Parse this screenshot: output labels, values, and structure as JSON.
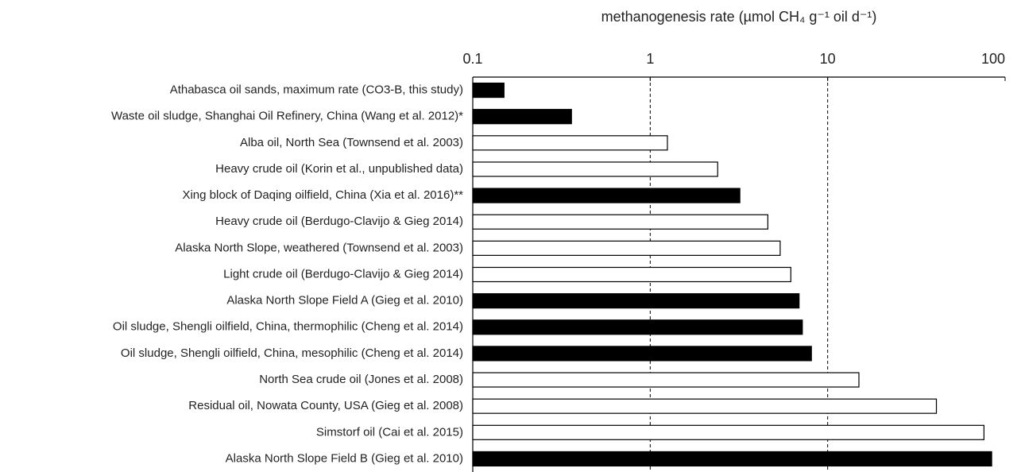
{
  "chart_data": {
    "type": "bar",
    "orientation": "horizontal",
    "x_label": "methanogenesis rate (µmol CH₄ g⁻¹ oil d⁻¹)",
    "categories": [
      "Athabasca oil sands, maximum rate (CO3-B, this study)",
      "Waste oil sludge, Shanghai Oil Refinery, China (Wang et al. 2012)*",
      "Alba oil, North Sea (Townsend et al. 2003)",
      "Heavy crude oil (Korin et al., unpublished data)",
      "Xing block of Daqing oilfield, China (Xia et al. 2016)**",
      "Heavy crude oil (Berdugo-Clavijo & Gieg 2014)",
      "Alaska North Slope, weathered (Townsend et al. 2003)",
      "Light crude oil (Berdugo-Clavijo & Gieg 2014)",
      "Alaska North Slope Field A (Gieg et al. 2010)",
      "Oil sludge, Shengli oilfield, China, thermophilic (Cheng et al. 2014)",
      "Oil sludge, Shengli oilfield, China, mesophilic (Cheng et al. 2014)",
      "North Sea crude oil (Jones et al. 2008)",
      "Residual oil, Nowata County, USA (Gieg et al. 2008)",
      "Simstorf oil (Cai et al. 2015)",
      "Alaska North Slope Field B (Gieg et al. 2010)"
    ],
    "values": [
      0.15,
      0.36,
      1.25,
      2.4,
      3.2,
      4.6,
      5.4,
      6.2,
      6.9,
      7.2,
      8.1,
      15,
      41,
      76,
      84
    ],
    "colors": [
      "#000000",
      "#000000",
      "#ffffff",
      "#ffffff",
      "#000000",
      "#ffffff",
      "#ffffff",
      "#ffffff",
      "#000000",
      "#000000",
      "#000000",
      "#ffffff",
      "#ffffff",
      "#ffffff",
      "#000000"
    ],
    "xlim": [
      0.1,
      100
    ],
    "xticks": [
      0.1,
      1,
      10,
      100
    ],
    "log_x": true,
    "grid": true
  }
}
